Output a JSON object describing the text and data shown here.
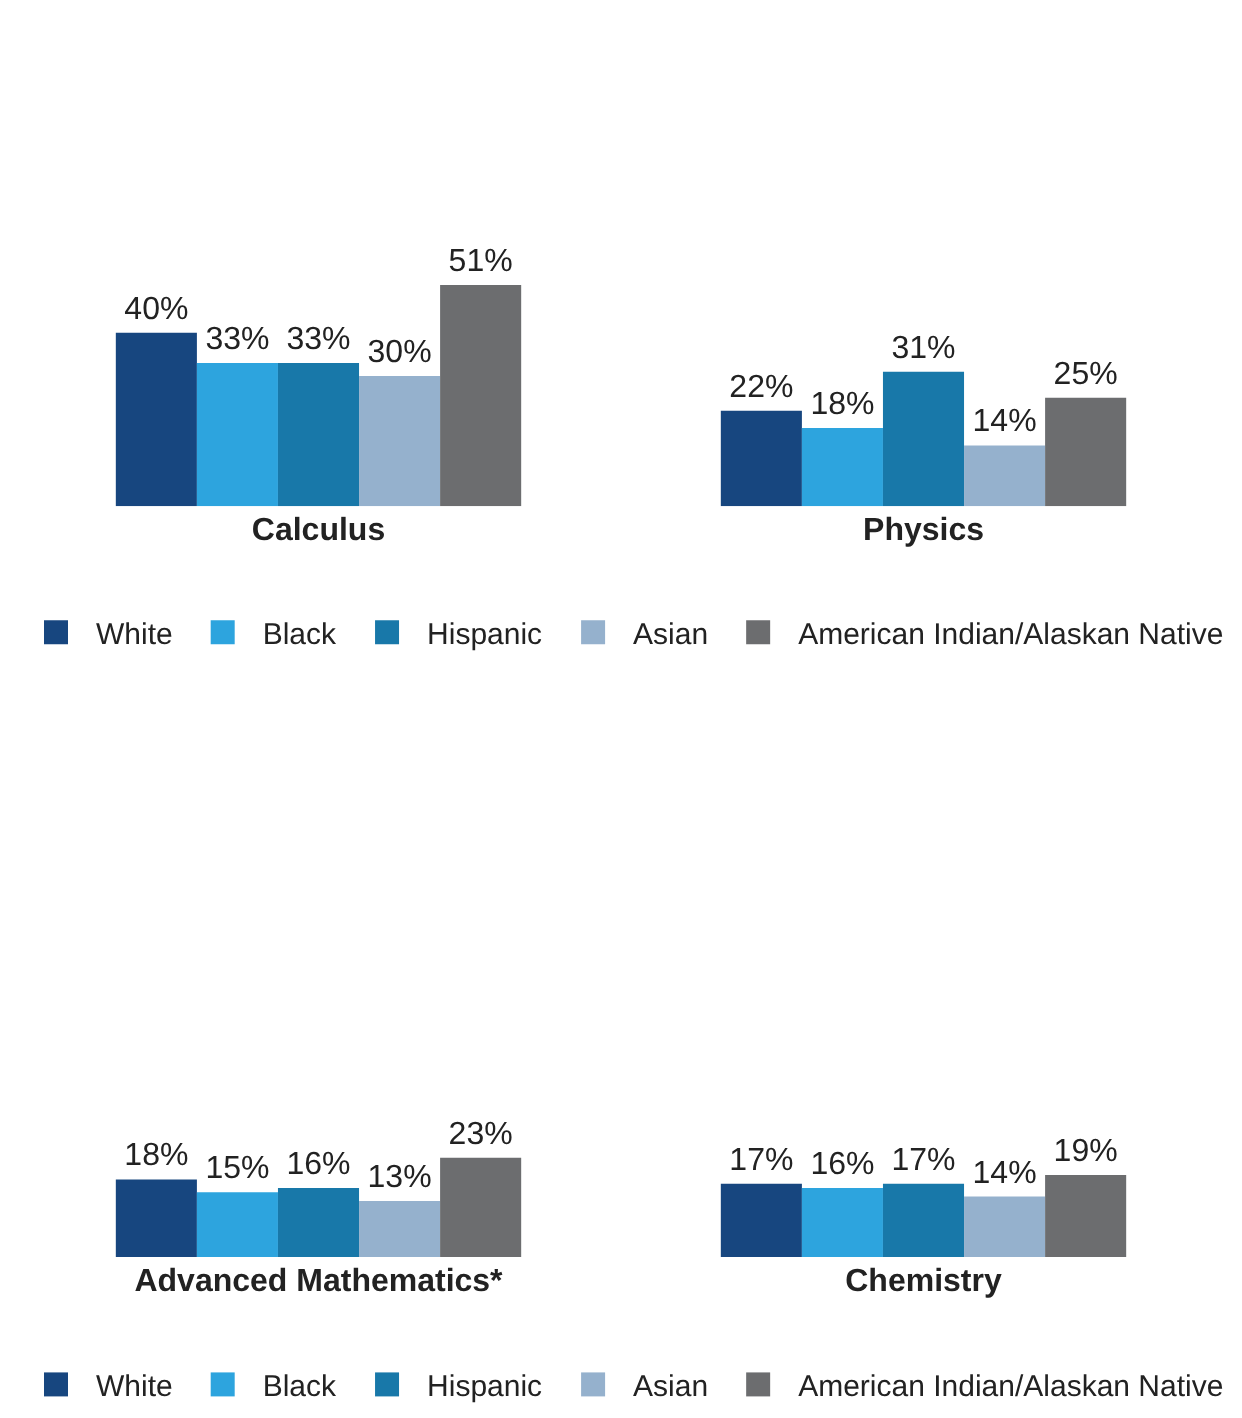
{
  "chart_data": [
    {
      "type": "bar",
      "categories": [
        "Calculus",
        "Physics"
      ],
      "legend": "bottom",
      "series": [
        {
          "name": "White",
          "color": "#17467f",
          "values": [
            40,
            22
          ],
          "value_labels": [
            "40%",
            "22%"
          ]
        },
        {
          "name": "Black",
          "color": "#2da4de",
          "values": [
            33,
            18
          ],
          "value_labels": [
            "33%",
            "18%"
          ]
        },
        {
          "name": "Hispanic",
          "color": "#1878a9",
          "values": [
            33,
            31
          ],
          "value_labels": [
            "33%",
            "31%"
          ]
        },
        {
          "name": "Asian",
          "color": "#95b1cd",
          "values": [
            30,
            14
          ],
          "value_labels": [
            "30%",
            "14%"
          ]
        },
        {
          "name": "American Indian/Alaskan Native",
          "color": "#6c6d6f",
          "values": [
            51,
            25
          ],
          "value_labels": [
            "51%",
            "25%"
          ]
        }
      ]
    },
    {
      "type": "bar",
      "categories": [
        "Advanced Mathematics*",
        "Chemistry"
      ],
      "legend": "bottom",
      "series": [
        {
          "name": "White",
          "color": "#17467f",
          "values": [
            18,
            17
          ],
          "value_labels": [
            "18%",
            "17%"
          ]
        },
        {
          "name": "Black",
          "color": "#2da4de",
          "values": [
            15,
            16
          ],
          "value_labels": [
            "15%",
            "16%"
          ]
        },
        {
          "name": "Hispanic",
          "color": "#1878a9",
          "values": [
            16,
            17
          ],
          "value_labels": [
            "16%",
            "17%"
          ]
        },
        {
          "name": "Asian",
          "color": "#95b1cd",
          "values": [
            13,
            14
          ],
          "value_labels": [
            "13%",
            "14%"
          ]
        },
        {
          "name": "American Indian/Alaskan Native",
          "color": "#6c6d6f",
          "values": [
            23,
            19
          ],
          "value_labels": [
            "23%",
            "19%"
          ]
        }
      ]
    }
  ]
}
